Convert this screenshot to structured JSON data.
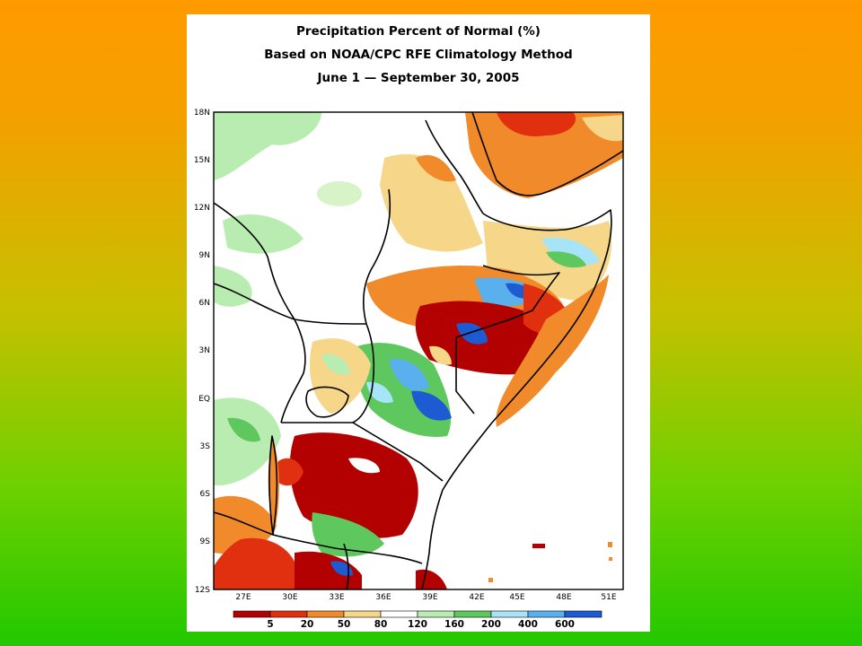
{
  "title": {
    "line1": "Precipitation Percent of Normal (%)",
    "line2": "Based on NOAA/CPC RFE Climatology Method",
    "line3": "June 1 — September 30, 2005"
  },
  "map": {
    "latitude_ticks": [
      "18N",
      "15N",
      "12N",
      "9N",
      "6N",
      "3N",
      "EQ",
      "3S",
      "6S",
      "9S",
      "12S"
    ],
    "longitude_ticks": [
      "27E",
      "30E",
      "33E",
      "36E",
      "39E",
      "42E",
      "45E",
      "48E",
      "51E"
    ],
    "lat_range": [
      -12,
      18
    ],
    "lon_range": [
      25,
      52
    ]
  },
  "legend": {
    "labels": [
      "5",
      "20",
      "50",
      "80",
      "120",
      "160",
      "200",
      "400",
      "600"
    ],
    "colors": [
      "#b30000",
      "#e03010",
      "#f08a2a",
      "#f6d688",
      "#ffffff",
      "#b8ecb0",
      "#5ec85e",
      "#a8e4f8",
      "#5ab0ec",
      "#1e5ad2"
    ]
  }
}
